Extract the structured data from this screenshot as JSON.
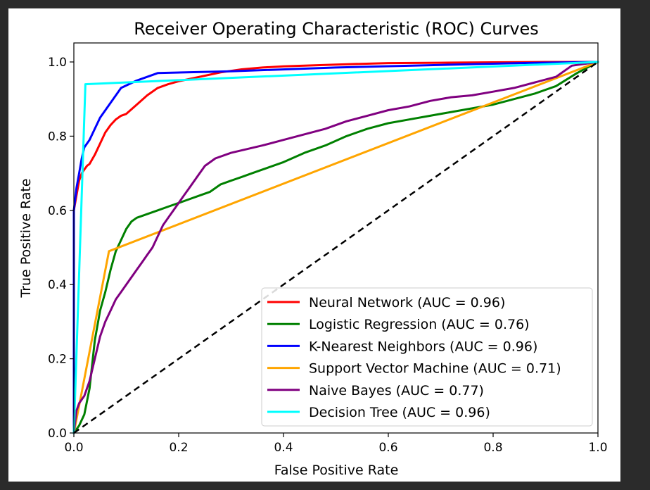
{
  "chart_data": {
    "type": "line",
    "title": "Receiver Operating Characteristic (ROC) Curves",
    "xlabel": "False Positive Rate",
    "ylabel": "True Positive Rate",
    "xlim": [
      0.0,
      1.0
    ],
    "ylim": [
      0.0,
      1.05
    ],
    "xticks": [
      "0.0",
      "0.2",
      "0.4",
      "0.6",
      "0.8",
      "1.0"
    ],
    "yticks": [
      "0.0",
      "0.2",
      "0.4",
      "0.6",
      "0.8",
      "1.0"
    ],
    "legend_position": "lower-right",
    "series": [
      {
        "name": "Neural Network (AUC = 0.96)",
        "color": "#ff0000",
        "points": [
          [
            0,
            0
          ],
          [
            0.0,
            0.6
          ],
          [
            0.005,
            0.64
          ],
          [
            0.01,
            0.68
          ],
          [
            0.015,
            0.7
          ],
          [
            0.02,
            0.71
          ],
          [
            0.025,
            0.72
          ],
          [
            0.03,
            0.725
          ],
          [
            0.04,
            0.75
          ],
          [
            0.05,
            0.78
          ],
          [
            0.06,
            0.81
          ],
          [
            0.07,
            0.83
          ],
          [
            0.08,
            0.845
          ],
          [
            0.09,
            0.855
          ],
          [
            0.1,
            0.86
          ],
          [
            0.12,
            0.885
          ],
          [
            0.14,
            0.91
          ],
          [
            0.16,
            0.93
          ],
          [
            0.18,
            0.94
          ],
          [
            0.2,
            0.948
          ],
          [
            0.24,
            0.96
          ],
          [
            0.28,
            0.972
          ],
          [
            0.32,
            0.98
          ],
          [
            0.36,
            0.985
          ],
          [
            0.4,
            0.988
          ],
          [
            0.5,
            0.993
          ],
          [
            0.6,
            0.997
          ],
          [
            0.7,
            0.998
          ],
          [
            0.8,
            0.999
          ],
          [
            0.9,
            1.0
          ],
          [
            1.0,
            1.0
          ]
        ]
      },
      {
        "name": "Logistic Regression (AUC = 0.76)",
        "color": "#008000",
        "points": [
          [
            0,
            0
          ],
          [
            0.01,
            0.02
          ],
          [
            0.02,
            0.05
          ],
          [
            0.03,
            0.12
          ],
          [
            0.04,
            0.25
          ],
          [
            0.05,
            0.33
          ],
          [
            0.06,
            0.38
          ],
          [
            0.07,
            0.44
          ],
          [
            0.08,
            0.49
          ],
          [
            0.09,
            0.52
          ],
          [
            0.1,
            0.55
          ],
          [
            0.11,
            0.57
          ],
          [
            0.12,
            0.58
          ],
          [
            0.14,
            0.59
          ],
          [
            0.16,
            0.6
          ],
          [
            0.18,
            0.61
          ],
          [
            0.2,
            0.62
          ],
          [
            0.22,
            0.63
          ],
          [
            0.24,
            0.64
          ],
          [
            0.26,
            0.65
          ],
          [
            0.28,
            0.67
          ],
          [
            0.3,
            0.68
          ],
          [
            0.32,
            0.69
          ],
          [
            0.34,
            0.7
          ],
          [
            0.36,
            0.71
          ],
          [
            0.38,
            0.72
          ],
          [
            0.4,
            0.73
          ],
          [
            0.44,
            0.755
          ],
          [
            0.48,
            0.775
          ],
          [
            0.52,
            0.8
          ],
          [
            0.56,
            0.82
          ],
          [
            0.6,
            0.835
          ],
          [
            0.64,
            0.845
          ],
          [
            0.68,
            0.855
          ],
          [
            0.72,
            0.865
          ],
          [
            0.76,
            0.875
          ],
          [
            0.8,
            0.885
          ],
          [
            0.84,
            0.9
          ],
          [
            0.88,
            0.915
          ],
          [
            0.92,
            0.935
          ],
          [
            0.96,
            0.97
          ],
          [
            1.0,
            1.0
          ]
        ]
      },
      {
        "name": "K-Nearest Neighbors (AUC = 0.96)",
        "color": "#0000ff",
        "points": [
          [
            0,
            0
          ],
          [
            0.0,
            0.6
          ],
          [
            0.005,
            0.66
          ],
          [
            0.01,
            0.7
          ],
          [
            0.015,
            0.74
          ],
          [
            0.02,
            0.77
          ],
          [
            0.03,
            0.79
          ],
          [
            0.04,
            0.82
          ],
          [
            0.05,
            0.85
          ],
          [
            0.07,
            0.89
          ],
          [
            0.09,
            0.93
          ],
          [
            0.12,
            0.95
          ],
          [
            0.16,
            0.97
          ],
          [
            0.3,
            0.975
          ],
          [
            0.5,
            0.985
          ],
          [
            0.7,
            0.992
          ],
          [
            0.85,
            0.997
          ],
          [
            1.0,
            1.0
          ]
        ]
      },
      {
        "name": "Support Vector Machine (AUC = 0.71)",
        "color": "#ffa500",
        "points": [
          [
            0,
            0
          ],
          [
            0.067,
            0.49
          ],
          [
            1.0,
            1.0
          ]
        ]
      },
      {
        "name": "Naive Bayes (AUC = 0.77)",
        "color": "#800080",
        "points": [
          [
            0,
            0
          ],
          [
            0.005,
            0.06
          ],
          [
            0.01,
            0.08
          ],
          [
            0.02,
            0.1
          ],
          [
            0.03,
            0.14
          ],
          [
            0.04,
            0.2
          ],
          [
            0.05,
            0.26
          ],
          [
            0.06,
            0.3
          ],
          [
            0.07,
            0.33
          ],
          [
            0.08,
            0.36
          ],
          [
            0.09,
            0.38
          ],
          [
            0.1,
            0.4
          ],
          [
            0.11,
            0.42
          ],
          [
            0.12,
            0.44
          ],
          [
            0.13,
            0.46
          ],
          [
            0.14,
            0.48
          ],
          [
            0.15,
            0.5
          ],
          [
            0.16,
            0.53
          ],
          [
            0.17,
            0.56
          ],
          [
            0.18,
            0.58
          ],
          [
            0.19,
            0.6
          ],
          [
            0.2,
            0.62
          ],
          [
            0.21,
            0.64
          ],
          [
            0.22,
            0.66
          ],
          [
            0.23,
            0.68
          ],
          [
            0.24,
            0.7
          ],
          [
            0.25,
            0.72
          ],
          [
            0.27,
            0.74
          ],
          [
            0.3,
            0.755
          ],
          [
            0.33,
            0.765
          ],
          [
            0.36,
            0.775
          ],
          [
            0.4,
            0.79
          ],
          [
            0.44,
            0.805
          ],
          [
            0.48,
            0.82
          ],
          [
            0.52,
            0.84
          ],
          [
            0.56,
            0.855
          ],
          [
            0.6,
            0.87
          ],
          [
            0.64,
            0.88
          ],
          [
            0.68,
            0.895
          ],
          [
            0.72,
            0.905
          ],
          [
            0.76,
            0.91
          ],
          [
            0.8,
            0.92
          ],
          [
            0.84,
            0.93
          ],
          [
            0.88,
            0.945
          ],
          [
            0.92,
            0.96
          ],
          [
            0.95,
            0.99
          ],
          [
            1.0,
            1.0
          ]
        ]
      },
      {
        "name": "Decision Tree (AUC = 0.96)",
        "color": "#00ffff",
        "points": [
          [
            0,
            0
          ],
          [
            0.022,
            0.94
          ],
          [
            1.0,
            1.0
          ]
        ]
      }
    ],
    "reference_line": {
      "from": [
        0,
        0
      ],
      "to": [
        1,
        1
      ],
      "color": "#000000",
      "style": "dashed"
    }
  }
}
